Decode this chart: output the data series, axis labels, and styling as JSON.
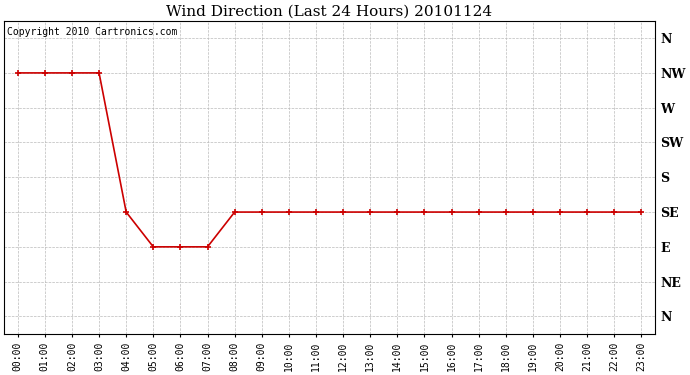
{
  "title": "Wind Direction (Last 24 Hours) 20101124",
  "copyright_text": "Copyright 2010 Cartronics.com",
  "background_color": "#ffffff",
  "plot_bg_color": "#ffffff",
  "line_color": "#cc0000",
  "marker_color": "#cc0000",
  "grid_color": "#bbbbbb",
  "x_labels": [
    "00:00",
    "01:00",
    "02:00",
    "03:00",
    "04:00",
    "05:00",
    "06:00",
    "07:00",
    "08:00",
    "09:00",
    "10:00",
    "11:00",
    "12:00",
    "13:00",
    "14:00",
    "15:00",
    "16:00",
    "17:00",
    "18:00",
    "19:00",
    "20:00",
    "21:00",
    "22:00",
    "23:00"
  ],
  "y_labels": [
    "N",
    "NW",
    "W",
    "SW",
    "S",
    "SE",
    "E",
    "NE",
    "N"
  ],
  "y_values": [
    8,
    7,
    6,
    5,
    4,
    3,
    2,
    1,
    0
  ],
  "data_y": [
    7,
    7,
    7,
    7,
    3,
    2,
    2,
    2,
    3,
    3,
    3,
    3,
    3,
    3,
    3,
    3,
    3,
    3,
    3,
    3,
    3,
    3,
    3,
    3
  ],
  "ylim": [
    -0.5,
    8.5
  ],
  "xlim": [
    -0.5,
    23.5
  ],
  "title_fontsize": 11,
  "axis_fontsize": 7,
  "ylabel_fontsize": 9,
  "copyright_fontsize": 7
}
